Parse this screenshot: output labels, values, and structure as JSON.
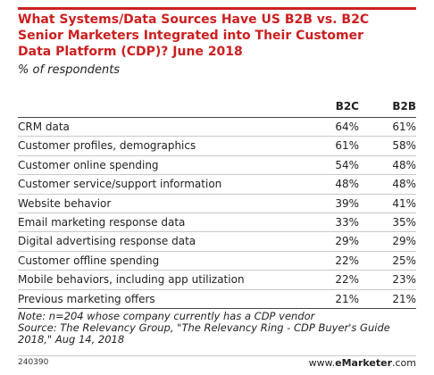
{
  "chart_data": {
    "type": "table",
    "title_lines": [
      "What Systems/Data Sources Have US B2B vs. B2C",
      "Senior Marketers Integrated into Their Customer",
      "Data Platform (CDP)? June 2018"
    ],
    "subtitle": "% of respondents",
    "columns": [
      "B2C",
      "B2B"
    ],
    "rows": [
      {
        "label": "CRM data",
        "values": [
          "64%",
          "61%"
        ]
      },
      {
        "label": "Customer profiles, demographics",
        "values": [
          "61%",
          "58%"
        ]
      },
      {
        "label": "Customer online spending",
        "values": [
          "54%",
          "48%"
        ]
      },
      {
        "label": "Customer service/support information",
        "values": [
          "48%",
          "48%"
        ]
      },
      {
        "label": "Website behavior",
        "values": [
          "39%",
          "41%"
        ]
      },
      {
        "label": "Email marketing response data",
        "values": [
          "33%",
          "35%"
        ]
      },
      {
        "label": "Digital advertising response data",
        "values": [
          "29%",
          "29%"
        ]
      },
      {
        "label": "Customer offline spending",
        "values": [
          "22%",
          "25%"
        ]
      },
      {
        "label": "Mobile behaviors, including app utilization",
        "values": [
          "22%",
          "23%"
        ]
      },
      {
        "label": "Previous marketing offers",
        "values": [
          "21%",
          "21%"
        ]
      }
    ],
    "note_lines": [
      "Note: n=204 whose company currently has a CDP vendor",
      "Source: The Relevancy Group, \"The Relevancy Ring - CDP Buyer's Guide",
      "2018,\" Aug 14, 2018"
    ]
  },
  "footer": {
    "id": "240390",
    "brand_prefix": "www.",
    "brand_bold": "eMarketer",
    "brand_suffix": ".com"
  },
  "colors": {
    "title": "#cc1f1f",
    "rule": "#cc2222"
  }
}
